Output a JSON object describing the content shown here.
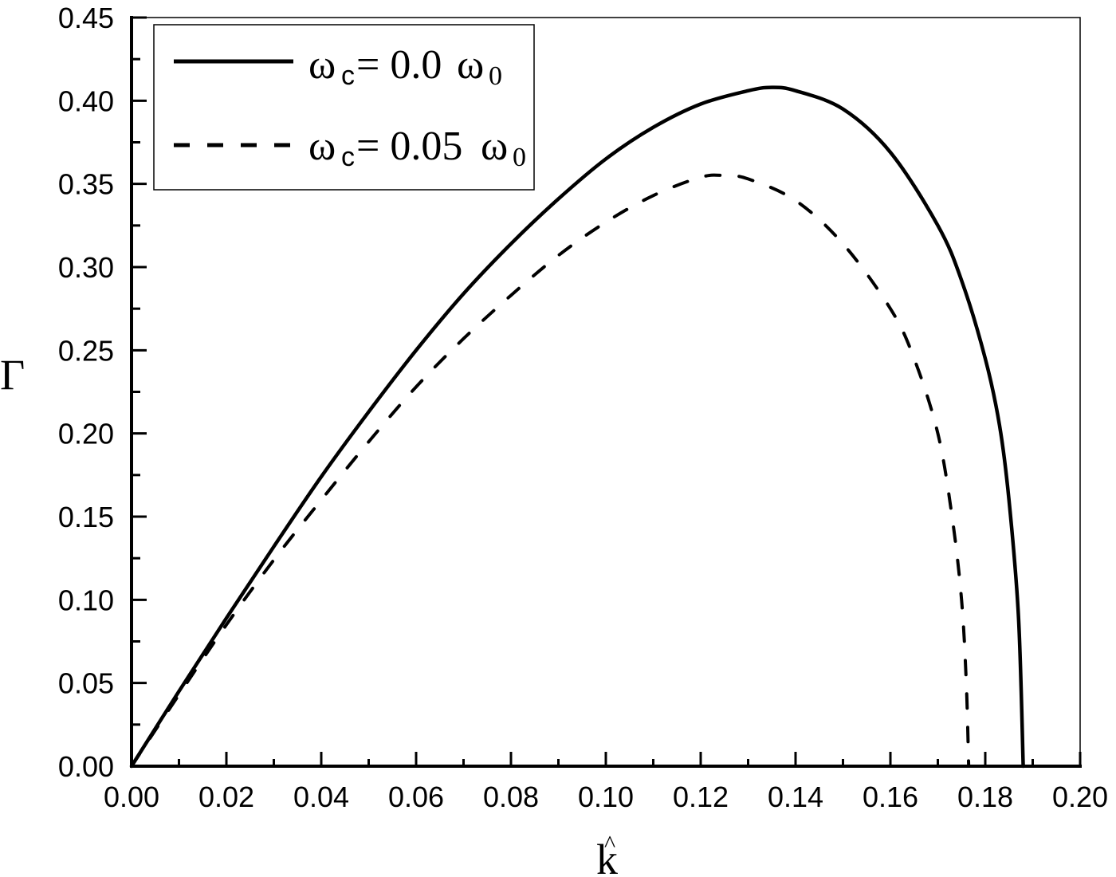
{
  "chart_data": {
    "type": "line",
    "title": "",
    "xlabel": "k̂",
    "ylabel": "Γ",
    "xlim": [
      0.0,
      0.2
    ],
    "ylim": [
      0.0,
      0.45
    ],
    "x_ticks": [
      "0.00",
      "0.02",
      "0.04",
      "0.06",
      "0.08",
      "0.10",
      "0.12",
      "0.14",
      "0.16",
      "0.18",
      "0.20"
    ],
    "y_ticks": [
      "0.00",
      "0.05",
      "0.10",
      "0.15",
      "0.20",
      "0.25",
      "0.30",
      "0.35",
      "0.40",
      "0.45"
    ],
    "grid": false,
    "legend_position": "upper left",
    "series": [
      {
        "name": "ωc = 0.0ω0",
        "style": "solid",
        "x": [
          0.0,
          0.01,
          0.02,
          0.03,
          0.04,
          0.05,
          0.06,
          0.07,
          0.08,
          0.09,
          0.1,
          0.11,
          0.12,
          0.13,
          0.135,
          0.14,
          0.15,
          0.16,
          0.17,
          0.175,
          0.18,
          0.183,
          0.185,
          0.187,
          0.188
        ],
        "values": [
          0.0,
          0.045,
          0.089,
          0.132,
          0.174,
          0.213,
          0.25,
          0.284,
          0.314,
          0.341,
          0.365,
          0.384,
          0.398,
          0.406,
          0.408,
          0.406,
          0.395,
          0.369,
          0.325,
          0.292,
          0.245,
          0.205,
          0.16,
          0.09,
          0.0
        ]
      },
      {
        "name": "ωc = 0.05ω0",
        "style": "dashed",
        "x": [
          0.0,
          0.01,
          0.02,
          0.03,
          0.04,
          0.05,
          0.06,
          0.07,
          0.08,
          0.09,
          0.1,
          0.11,
          0.12,
          0.125,
          0.13,
          0.14,
          0.15,
          0.16,
          0.165,
          0.17,
          0.173,
          0.175,
          0.176,
          0.1765
        ],
        "values": [
          0.0,
          0.043,
          0.085,
          0.124,
          0.16,
          0.195,
          0.228,
          0.257,
          0.283,
          0.307,
          0.327,
          0.343,
          0.354,
          0.355,
          0.353,
          0.34,
          0.314,
          0.275,
          0.245,
          0.2,
          0.15,
          0.1,
          0.05,
          0.0
        ]
      }
    ]
  },
  "legend": {
    "items": [
      {
        "symbol": "ω",
        "sub": "c",
        "eq": "= 0.0",
        "omega": "ω",
        "omega_sub": "0"
      },
      {
        "symbol": "ω",
        "sub": "c",
        "eq": "= 0.05",
        "omega": "ω",
        "omega_sub": "0"
      }
    ]
  },
  "axes": {
    "ylabel": "Γ",
    "xlabel_base": "k",
    "xlabel_hat": "^"
  }
}
